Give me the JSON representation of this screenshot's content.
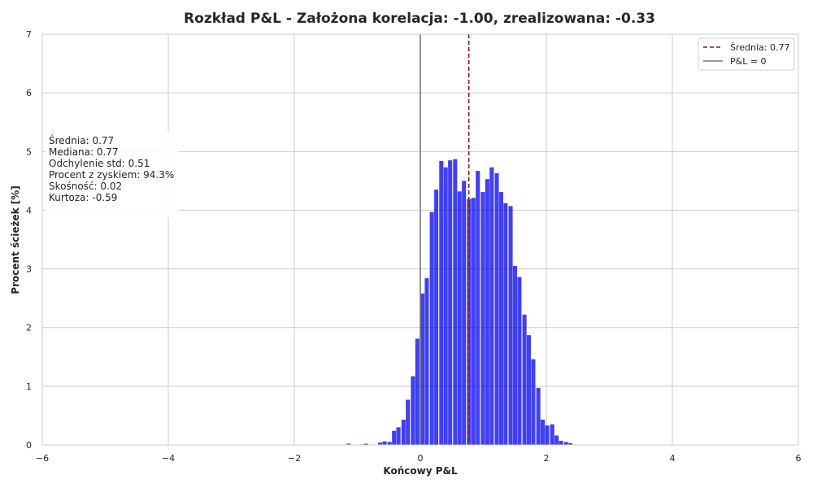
{
  "chart_data": {
    "type": "bar",
    "title": "Rozkład P&L - Założona korelacja: -1.00, zrealizowana: -0.33",
    "xlabel": "Końcowy P&L",
    "ylabel": "Procent ścieżek [%]",
    "xlim": [
      -6,
      6
    ],
    "ylim": [
      0,
      7
    ],
    "x_ticks": [
      "−6",
      "−4",
      "−2",
      "0",
      "2",
      "4",
      "6"
    ],
    "x_tick_values": [
      -6,
      -4,
      -2,
      0,
      2,
      4,
      6
    ],
    "y_ticks": [
      "0",
      "1",
      "2",
      "3",
      "4",
      "5",
      "6",
      "7"
    ],
    "y_tick_values": [
      0,
      1,
      2,
      3,
      4,
      5,
      6,
      7
    ],
    "grid": true,
    "bar_color": "#0000ee",
    "bin_width": 0.0735,
    "bins": [
      {
        "x": -1.17,
        "y": 0.02
      },
      {
        "x": -0.96,
        "y": 0.01
      },
      {
        "x": -0.89,
        "y": 0.02
      },
      {
        "x": -0.67,
        "y": 0.04
      },
      {
        "x": -0.6,
        "y": 0.06
      },
      {
        "x": -0.52,
        "y": 0.05
      },
      {
        "x": -0.45,
        "y": 0.24
      },
      {
        "x": -0.38,
        "y": 0.3
      },
      {
        "x": -0.3,
        "y": 0.43
      },
      {
        "x": -0.23,
        "y": 0.77
      },
      {
        "x": -0.15,
        "y": 1.17
      },
      {
        "x": -0.08,
        "y": 1.81
      },
      {
        "x": 0.0,
        "y": 2.58
      },
      {
        "x": 0.07,
        "y": 2.84
      },
      {
        "x": 0.15,
        "y": 3.97
      },
      {
        "x": 0.22,
        "y": 4.35
      },
      {
        "x": 0.3,
        "y": 4.84
      },
      {
        "x": 0.37,
        "y": 4.73
      },
      {
        "x": 0.44,
        "y": 4.85
      },
      {
        "x": 0.52,
        "y": 4.87
      },
      {
        "x": 0.59,
        "y": 4.32
      },
      {
        "x": 0.66,
        "y": 4.5
      },
      {
        "x": 0.74,
        "y": 4.19
      },
      {
        "x": 0.81,
        "y": 4.21
      },
      {
        "x": 0.88,
        "y": 4.67
      },
      {
        "x": 0.96,
        "y": 4.31
      },
      {
        "x": 1.03,
        "y": 4.53
      },
      {
        "x": 1.1,
        "y": 4.73
      },
      {
        "x": 1.18,
        "y": 4.63
      },
      {
        "x": 1.25,
        "y": 4.31
      },
      {
        "x": 1.32,
        "y": 4.12
      },
      {
        "x": 1.4,
        "y": 4.07
      },
      {
        "x": 1.47,
        "y": 3.05
      },
      {
        "x": 1.54,
        "y": 2.86
      },
      {
        "x": 1.62,
        "y": 2.22
      },
      {
        "x": 1.69,
        "y": 1.87
      },
      {
        "x": 1.76,
        "y": 1.46
      },
      {
        "x": 1.84,
        "y": 0.97
      },
      {
        "x": 1.91,
        "y": 0.43
      },
      {
        "x": 1.98,
        "y": 0.33
      },
      {
        "x": 2.06,
        "y": 0.35
      },
      {
        "x": 2.13,
        "y": 0.16
      },
      {
        "x": 2.2,
        "y": 0.07
      },
      {
        "x": 2.28,
        "y": 0.05
      },
      {
        "x": 2.35,
        "y": 0.03
      }
    ],
    "mean_line": {
      "x": 0.77,
      "color": "#8b1a1a",
      "style": "dashed"
    },
    "zero_line": {
      "x": 0,
      "color": "#777777",
      "style": "solid"
    },
    "legend": {
      "position": "top-right",
      "entries": [
        {
          "label": "Średnia: 0.77",
          "color": "#8b1a1a",
          "style": "dashed"
        },
        {
          "label": "P&L = 0",
          "color": "#777777",
          "style": "solid"
        }
      ]
    },
    "stats_box": {
      "position": "top-left",
      "lines": [
        "Średnia: 0.77",
        "Mediana: 0.77",
        "Odchylenie std: 0.51",
        "Procent z zyskiem: 94.3%",
        "Skośność: 0.02",
        "Kurtoza: -0.59"
      ]
    }
  }
}
